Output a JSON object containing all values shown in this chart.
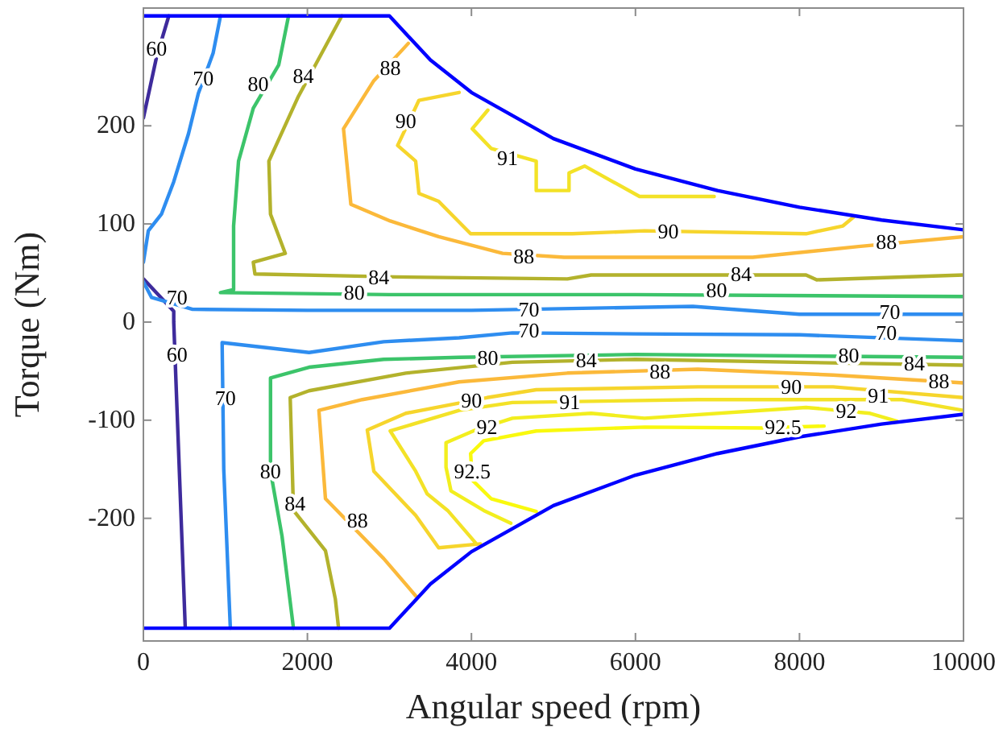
{
  "chart_data": {
    "type": "line",
    "xlabel": "Angular speed (rpm)",
    "ylabel": "Torque (Nm)",
    "xlim": [
      0,
      10000
    ],
    "ylim": [
      -325,
      320
    ],
    "xticks": [
      0,
      2000,
      4000,
      6000,
      8000,
      10000
    ],
    "yticks": [
      -200,
      -100,
      0,
      100,
      200
    ],
    "series": [
      {
        "color": "#3e2b9c",
        "x": [
          310,
          160,
          0
        ],
        "values": [
          312,
          270,
          208
        ]
      },
      {
        "color": "#3e2b9c",
        "x": [
          0,
          370,
          370,
          510
        ],
        "values": [
          44,
          11,
          0,
          -311
        ]
      },
      {
        "color": "#2e8df0",
        "x": [
          940,
          850,
          670,
          550,
          370,
          220,
          60,
          0
        ],
        "values": [
          312,
          274,
          233,
          192,
          143,
          110,
          93,
          61
        ]
      },
      {
        "color": "#2e8df0",
        "x": [
          0,
          100,
          600,
          2000,
          4000,
          6700,
          8000,
          10000
        ],
        "values": [
          41,
          25,
          13,
          12,
          12,
          16,
          8,
          8
        ]
      },
      {
        "color": "#2e8df0",
        "x": [
          1060,
          980,
          960,
          2020,
          2930,
          3850,
          4500,
          6000,
          8000,
          10000
        ],
        "values": [
          -312,
          -150,
          -21,
          -31,
          -20,
          -16,
          -11,
          -12,
          -13,
          -19
        ]
      },
      {
        "color": "#3cc46a",
        "x": [
          1770,
          1650,
          1340,
          1160,
          1100,
          1100,
          940,
          3000,
          6000,
          10000
        ],
        "values": [
          312,
          262,
          218,
          164,
          98,
          33,
          30,
          28,
          28,
          26
        ]
      },
      {
        "color": "#3cc46a",
        "x": [
          1830,
          1690,
          1550,
          1550,
          2020,
          2930,
          3850,
          6000,
          10000
        ],
        "values": [
          -312,
          -218,
          -152,
          -57,
          -46,
          -38,
          -36,
          -33,
          -36
        ]
      },
      {
        "color": "#b3b22c",
        "x": [
          2420,
          1890,
          1530,
          1550,
          1730,
          1340,
          1360,
          3070,
          5170,
          5460,
          8080,
          8210,
          10000
        ],
        "values": [
          312,
          230,
          164,
          110,
          70,
          61,
          49,
          46,
          44,
          48,
          48,
          43,
          48
        ]
      },
      {
        "color": "#b3b22c",
        "x": [
          2380,
          2340,
          2220,
          1830,
          1790,
          2020,
          3200,
          4500,
          6000,
          10000
        ],
        "values": [
          -312,
          -282,
          -233,
          -192,
          -77,
          -70,
          -52,
          -41,
          -38,
          -44
        ]
      },
      {
        "color": "#fbb93a",
        "x": [
          3230,
          2810,
          2440,
          2530,
          3010,
          3600,
          4380,
          5130,
          7430,
          8720,
          10000
        ],
        "values": [
          284,
          246,
          197,
          120,
          103,
          87,
          70,
          66,
          66,
          77,
          87
        ]
      },
      {
        "color": "#fbb93a",
        "x": [
          3320,
          2930,
          2220,
          2140,
          2670,
          3850,
          5170,
          6760,
          8410,
          10000
        ],
        "values": [
          -279,
          -241,
          -180,
          -90,
          -79,
          -61,
          -52,
          -48,
          -54,
          -62
        ]
      },
      {
        "color": "#f6d52c",
        "x": [
          3850,
          3360,
          3100,
          3320,
          3360,
          3600,
          3990,
          5230,
          6110,
          8080,
          8530,
          8660
        ],
        "values": [
          234,
          226,
          180,
          164,
          131,
          123,
          90,
          90,
          93,
          90,
          98,
          107
        ]
      },
      {
        "color": "#f6d52c",
        "x": [
          4110,
          3600,
          3320,
          2810,
          2730,
          3200,
          4190,
          4790,
          6760,
          8410,
          10000
        ],
        "values": [
          -226,
          -230,
          -197,
          -152,
          -110,
          -93,
          -77,
          -69,
          -66,
          -66,
          -77
        ]
      },
      {
        "color": "#f3e227",
        "x": [
          4200,
          4010,
          4240,
          4790,
          4790,
          5190,
          5190,
          5380,
          6050,
          6960
        ],
        "values": [
          216,
          197,
          177,
          164,
          134,
          134,
          152,
          159,
          128,
          128
        ]
      },
      {
        "color": "#f3e227",
        "x": [
          4050,
          3710,
          3460,
          3320,
          3010,
          3850,
          4500,
          6760,
          8720,
          9250,
          10000
        ],
        "values": [
          -225,
          -192,
          -175,
          -152,
          -111,
          -90,
          -82,
          -79,
          -79,
          -79,
          -90
        ]
      },
      {
        "color": "#f2ee1e",
        "x": [
          4480,
          4150,
          3750,
          3690,
          3690,
          4050,
          4500,
          5460,
          6110,
          8080,
          8860,
          9190
        ],
        "values": [
          -205,
          -192,
          -172,
          -148,
          -123,
          -110,
          -98,
          -93,
          -98,
          -87,
          -93,
          -101
        ]
      },
      {
        "color": "#f9f90e",
        "x": [
          4790,
          4240,
          4010,
          3990,
          4150,
          4790,
          6110,
          7540,
          8300
        ],
        "values": [
          -193,
          -180,
          -161,
          -134,
          -121,
          -111,
          -107,
          -108,
          -106
        ]
      },
      {
        "color": "#0000ff",
        "x": [
          0,
          3000,
          3500,
          4000,
          5000,
          6000,
          7000,
          8000,
          9000,
          10000
        ],
        "values": [
          312,
          312,
          267,
          234,
          187,
          156,
          134,
          117,
          104,
          94
        ]
      },
      {
        "color": "#0000ff",
        "x": [
          0,
          3000,
          3500,
          4000,
          5000,
          6000,
          7000,
          8000,
          9000,
          10000
        ],
        "values": [
          -312,
          -312,
          -267,
          -234,
          -187,
          -156,
          -134,
          -117,
          -104,
          -94
        ]
      }
    ],
    "annotations": [
      {
        "text": "60",
        "x": 160,
        "y": 279
      },
      {
        "text": "60",
        "x": 410,
        "y": -33
      },
      {
        "text": "70",
        "x": 730,
        "y": 249
      },
      {
        "text": "70",
        "x": 410,
        "y": 25
      },
      {
        "text": "70",
        "x": 4700,
        "y": 13
      },
      {
        "text": "70",
        "x": 9100,
        "y": 11
      },
      {
        "text": "70",
        "x": 4700,
        "y": -8
      },
      {
        "text": "70",
        "x": 9060,
        "y": -11
      },
      {
        "text": "70",
        "x": 1000,
        "y": -77
      },
      {
        "text": "80",
        "x": 1400,
        "y": 243
      },
      {
        "text": "80",
        "x": 2570,
        "y": 30
      },
      {
        "text": "80",
        "x": 6990,
        "y": 33
      },
      {
        "text": "80",
        "x": 4200,
        "y": -36
      },
      {
        "text": "80",
        "x": 8600,
        "y": -34
      },
      {
        "text": "80",
        "x": 1550,
        "y": -152
      },
      {
        "text": "84",
        "x": 1950,
        "y": 251
      },
      {
        "text": "84",
        "x": 2870,
        "y": 46
      },
      {
        "text": "84",
        "x": 7290,
        "y": 49
      },
      {
        "text": "84",
        "x": 5400,
        "y": -39
      },
      {
        "text": "84",
        "x": 9400,
        "y": -42
      },
      {
        "text": "84",
        "x": 1850,
        "y": -185
      },
      {
        "text": "88",
        "x": 3010,
        "y": 259
      },
      {
        "text": "88",
        "x": 4640,
        "y": 67
      },
      {
        "text": "88",
        "x": 9060,
        "y": 82
      },
      {
        "text": "88",
        "x": 6300,
        "y": -50
      },
      {
        "text": "88",
        "x": 9700,
        "y": -60
      },
      {
        "text": "88",
        "x": 2610,
        "y": -202
      },
      {
        "text": "90",
        "x": 3200,
        "y": 205
      },
      {
        "text": "90",
        "x": 6400,
        "y": 93
      },
      {
        "text": "90",
        "x": 4000,
        "y": -80
      },
      {
        "text": "90",
        "x": 7900,
        "y": -66
      },
      {
        "text": "91",
        "x": 4440,
        "y": 167
      },
      {
        "text": "91",
        "x": 5200,
        "y": -81
      },
      {
        "text": "91",
        "x": 8960,
        "y": -75
      },
      {
        "text": "92",
        "x": 4190,
        "y": -107
      },
      {
        "text": "92",
        "x": 8570,
        "y": -90
      },
      {
        "text": "92.5",
        "x": 4010,
        "y": -152
      },
      {
        "text": "92.5",
        "x": 7800,
        "y": -107
      }
    ]
  }
}
